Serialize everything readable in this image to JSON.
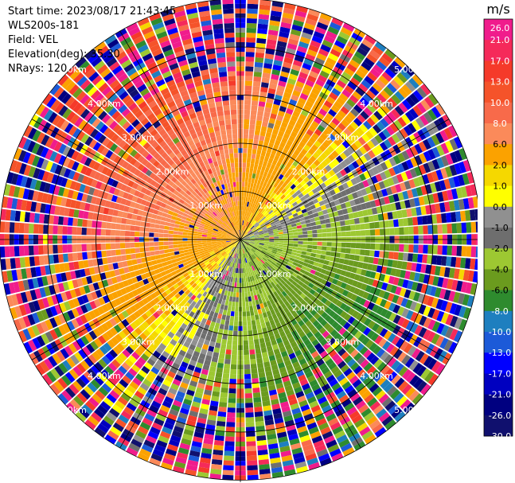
{
  "header": {
    "start_time": "Start time: 2023/08/17 21:43:45",
    "instrument": "WLS200s-181",
    "field": "Field: VEL",
    "elevation": "Elevation(deg): 35.30",
    "nrays": "NRays: 120"
  },
  "chart_data": {
    "type": "heatmap",
    "projection": "polar (PPI)",
    "field": "VEL",
    "units": "m/s",
    "nrays": 120,
    "range_rings_km": [
      1.0,
      2.0,
      3.0,
      4.0,
      5.0
    ],
    "ring_labels": [
      "1.00km",
      "2.00km",
      "3.00km",
      "4.00km",
      "5.00km"
    ],
    "colorbar": {
      "label": "m/s",
      "ticks": [
        "26.0",
        "21.0",
        "17.0",
        "13.0",
        "10.0",
        "8.0",
        "6.0",
        "2.0",
        "1.0",
        "0.0",
        "-1.0",
        "-2.0",
        "-4.0",
        "-6.0",
        "-8.0",
        "-10.0",
        "-13.0",
        "-17.0",
        "-21.0",
        "-26.0",
        "-30.0"
      ],
      "colors": [
        "#f01c8c",
        "#f52a5a",
        "#f53a2a",
        "#f5532a",
        "#f86a4a",
        "#fb8a5a",
        "#fba200",
        "#f5d800",
        "#ffff00",
        "#909090",
        "#6e6e6e",
        "#9dc832",
        "#6b9b1e",
        "#2e8b2e",
        "#1e7fbf",
        "#1c5ad8",
        "#0000ff",
        "#0000c0",
        "#000080",
        "#10106e"
      ]
    }
  }
}
